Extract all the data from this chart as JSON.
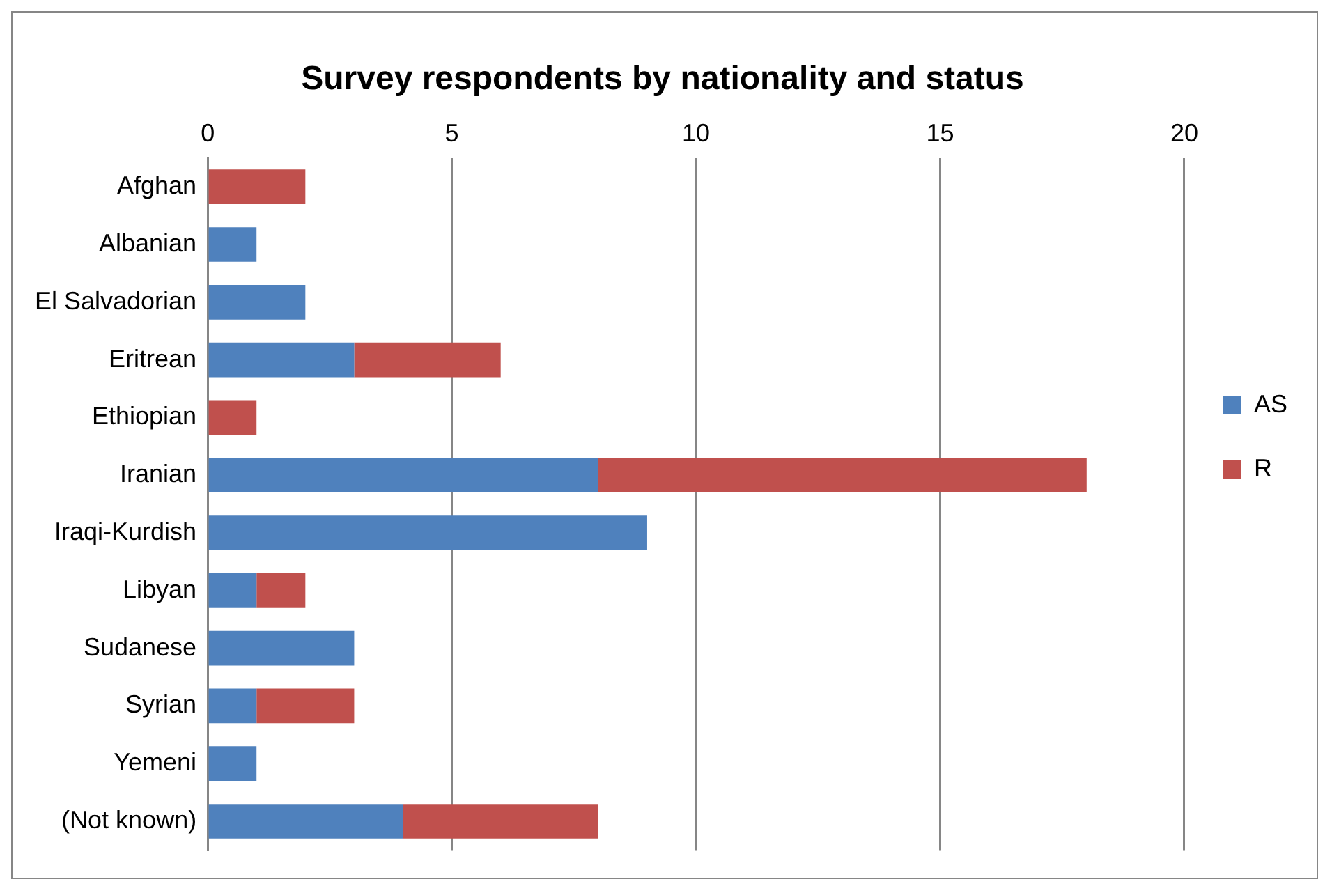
{
  "chart_data": {
    "type": "bar",
    "orientation": "horizontal",
    "stacked": true,
    "title": "Survey respondents by nationality and status",
    "categories": [
      "Afghan",
      "Albanian",
      "El Salvadorian",
      "Eritrean",
      "Ethiopian",
      "Iranian",
      "Iraqi-Kurdish",
      "Libyan",
      "Sudanese",
      "Syrian",
      "Yemeni",
      "(Not known)"
    ],
    "series": [
      {
        "name": "AS",
        "color": "#4f81bd",
        "values": [
          0,
          1,
          2,
          3,
          0,
          8,
          9,
          1,
          3,
          1,
          1,
          4
        ]
      },
      {
        "name": "R",
        "color": "#c0504d",
        "values": [
          2,
          0,
          0,
          3,
          1,
          10,
          0,
          1,
          0,
          2,
          0,
          4
        ]
      }
    ],
    "xlim": [
      0,
      20
    ],
    "xticks": [
      0,
      5,
      10,
      15,
      20
    ],
    "grid": "x",
    "legend": "right"
  }
}
